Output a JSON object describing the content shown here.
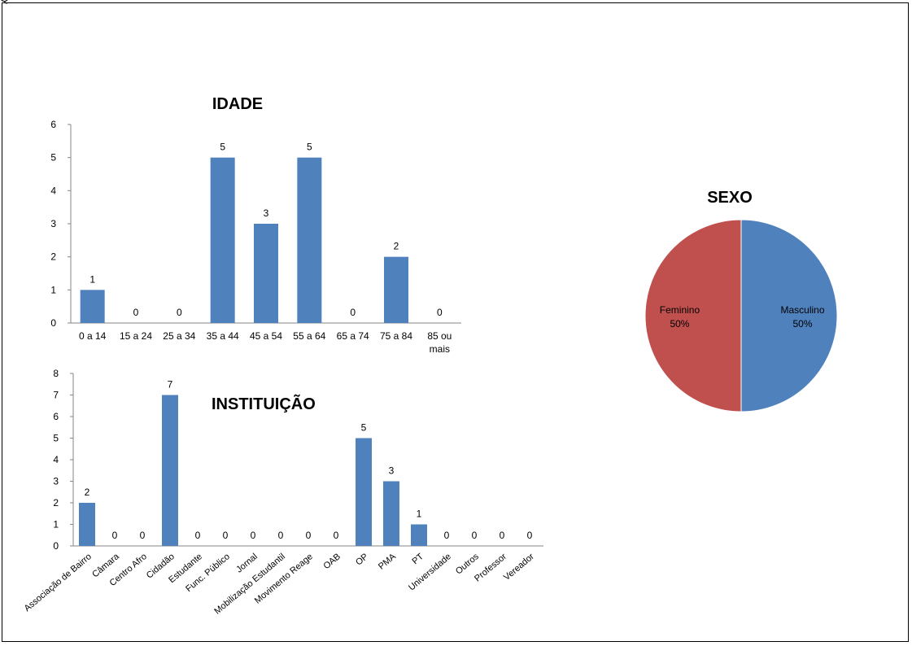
{
  "corner_mark": "Q",
  "chart_data": [
    {
      "type": "bar",
      "title": "IDADE",
      "categories": [
        "0 a 14",
        "15 a 24",
        "25 a 34",
        "35 a 44",
        "45 a 54",
        "55 a 64",
        "65 a 74",
        "75 a 84",
        "85 ou mais"
      ],
      "values": [
        1,
        0,
        0,
        5,
        3,
        5,
        0,
        2,
        0
      ],
      "ylim": [
        0,
        6
      ],
      "yticks": [
        "0",
        "1",
        "2",
        "3",
        "4",
        "5",
        "6"
      ],
      "grid": false,
      "bar_color": "#4f81bd"
    },
    {
      "type": "bar",
      "title": "INSTITUIÇÃO",
      "categories": [
        "Associação de Bairro",
        "Câmara",
        "Centro Afro",
        "Cidadão",
        "Estudante",
        "Func. Público",
        "Jornal",
        "Mobilização Estudantil",
        "Movimento Reage",
        "OAB",
        "OP",
        "PMA",
        "PT",
        "Universidade",
        "Outros",
        "Professor",
        "Vereador"
      ],
      "values": [
        2,
        0,
        0,
        7,
        0,
        0,
        0,
        0,
        0,
        0,
        5,
        3,
        1,
        0,
        0,
        0,
        0
      ],
      "ylim": [
        0,
        8
      ],
      "yticks": [
        "0",
        "1",
        "2",
        "3",
        "4",
        "5",
        "6",
        "7",
        "8"
      ],
      "grid": false,
      "bar_color": "#4f81bd"
    },
    {
      "type": "pie",
      "title": "SEXO",
      "slices": [
        {
          "label": "Masculino",
          "value": 50,
          "pct_label": "50%",
          "color": "#4f81bd"
        },
        {
          "label": "Feminino",
          "value": 50,
          "pct_label": "50%",
          "color": "#c0504d"
        }
      ]
    }
  ]
}
